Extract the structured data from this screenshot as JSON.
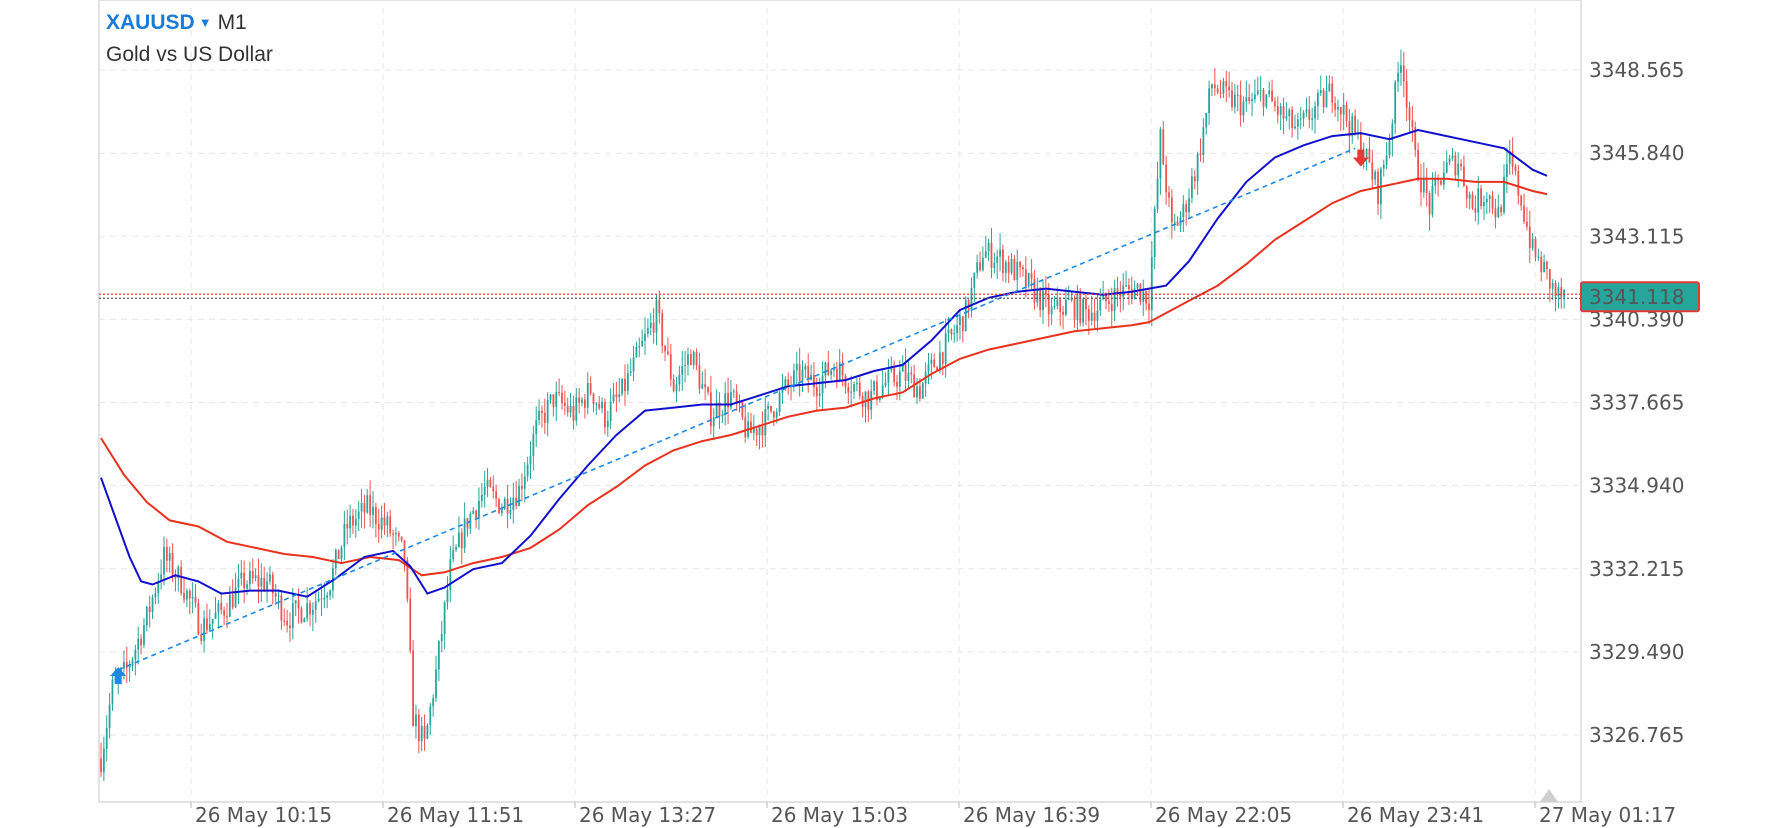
{
  "header": {
    "symbol": "XAUUSD",
    "timeframe": "M1",
    "description": "Gold vs US Dollar"
  },
  "colors": {
    "bull": "#26a69a",
    "bear": "#ef5350",
    "ma_fast": "#1010cc",
    "ma_slow": "#e8321e",
    "trend": "#1e88e5",
    "price_tag_bg": "#26a69a",
    "price_tag_border": "#e53935",
    "grid": "#e6e6e6"
  },
  "price_tag": "3341.118",
  "chart_data": {
    "type": "candlestick",
    "ylim": [
      3324.7,
      3350.6
    ],
    "y_ticks": [
      "3348.565",
      "3345.840",
      "3343.115",
      "3340.390",
      "3337.665",
      "3334.940",
      "3332.215",
      "3329.490",
      "3326.765"
    ],
    "x_ticks": [
      "26 May 10:15",
      "26 May 11:51",
      "26 May 13:27",
      "26 May 15:03",
      "26 May 16:39",
      "26 May 22:05",
      "26 May 23:41",
      "27 May 01:17"
    ],
    "current_price": 3341.118,
    "trend_line": {
      "start": 3328.9,
      "end": 3346.0
    },
    "markers": [
      {
        "type": "buy-arrow",
        "at": "start",
        "price": 3328.7
      },
      {
        "type": "sell-arrow",
        "at": "near-end",
        "price": 3345.7
      }
    ],
    "price_path": [
      [
        0,
        3326.0
      ],
      [
        4,
        3328.3
      ],
      [
        9,
        3328.9
      ],
      [
        16,
        3330.6
      ],
      [
        22,
        3332.6
      ],
      [
        28,
        3331.8
      ],
      [
        35,
        3330.3
      ],
      [
        42,
        3330.8
      ],
      [
        50,
        3331.8
      ],
      [
        58,
        3331.8
      ],
      [
        65,
        3330.6
      ],
      [
        74,
        3331.1
      ],
      [
        80,
        3331.8
      ],
      [
        86,
        3333.6
      ],
      [
        93,
        3334.2
      ],
      [
        100,
        3333.6
      ],
      [
        106,
        3332.6
      ],
      [
        109,
        3327.4
      ],
      [
        113,
        3326.4
      ],
      [
        117,
        3328.8
      ],
      [
        122,
        3332.2
      ],
      [
        128,
        3333.8
      ],
      [
        134,
        3334.8
      ],
      [
        140,
        3334.3
      ],
      [
        146,
        3334.8
      ],
      [
        152,
        3336.8
      ],
      [
        158,
        3337.8
      ],
      [
        165,
        3337.3
      ],
      [
        171,
        3338.1
      ],
      [
        176,
        3337.2
      ],
      [
        182,
        3338.0
      ],
      [
        188,
        3339.3
      ],
      [
        194,
        3340.6
      ],
      [
        200,
        3338.2
      ],
      [
        206,
        3339.3
      ],
      [
        213,
        3337.3
      ],
      [
        220,
        3337.9
      ],
      [
        226,
        3336.6
      ],
      [
        232,
        3337.1
      ],
      [
        238,
        3338.0
      ],
      [
        244,
        3338.6
      ],
      [
        250,
        3338.3
      ],
      [
        256,
        3338.9
      ],
      [
        262,
        3338.3
      ],
      [
        268,
        3337.8
      ],
      [
        274,
        3338.3
      ],
      [
        280,
        3338.6
      ],
      [
        286,
        3338.1
      ],
      [
        292,
        3339.1
      ],
      [
        297,
        3339.8
      ],
      [
        302,
        3340.6
      ],
      [
        308,
        3342.6
      ],
      [
        314,
        3342.4
      ],
      [
        320,
        3341.9
      ],
      [
        326,
        3341.3
      ],
      [
        332,
        3340.6
      ],
      [
        338,
        3340.9
      ],
      [
        344,
        3340.6
      ],
      [
        350,
        3340.9
      ],
      [
        356,
        3341.3
      ],
      [
        362,
        3341.4
      ],
      [
        366,
        3341.1
      ],
      [
        370,
        3346.3
      ],
      [
        374,
        3343.3
      ],
      [
        378,
        3343.9
      ],
      [
        383,
        3345.6
      ],
      [
        388,
        3348.1
      ],
      [
        394,
        3347.6
      ],
      [
        400,
        3347.4
      ],
      [
        406,
        3347.8
      ],
      [
        412,
        3347.1
      ],
      [
        418,
        3346.6
      ],
      [
        424,
        3347.3
      ],
      [
        430,
        3347.9
      ],
      [
        436,
        3346.8
      ],
      [
        441,
        3345.9
      ],
      [
        446,
        3344.6
      ],
      [
        450,
        3346.4
      ],
      [
        454,
        3349.1
      ],
      [
        459,
        3345.6
      ],
      [
        464,
        3344.1
      ],
      [
        469,
        3345.3
      ],
      [
        474,
        3345.6
      ],
      [
        479,
        3344.1
      ],
      [
        484,
        3344.6
      ],
      [
        488,
        3343.8
      ],
      [
        492,
        3345.6
      ],
      [
        496,
        3344.3
      ],
      [
        500,
        3342.6
      ],
      [
        504,
        3342.0
      ],
      [
        508,
        3341.2
      ],
      [
        511,
        3341.1
      ]
    ],
    "ma_fast": [
      [
        0,
        3335.2
      ],
      [
        5,
        3333.9
      ],
      [
        10,
        3332.6
      ],
      [
        14,
        3331.8
      ],
      [
        18,
        3331.7
      ],
      [
        26,
        3332.0
      ],
      [
        34,
        3331.8
      ],
      [
        42,
        3331.4
      ],
      [
        52,
        3331.5
      ],
      [
        62,
        3331.5
      ],
      [
        72,
        3331.3
      ],
      [
        82,
        3331.9
      ],
      [
        92,
        3332.6
      ],
      [
        102,
        3332.8
      ],
      [
        108,
        3332.3
      ],
      [
        114,
        3331.4
      ],
      [
        120,
        3331.6
      ],
      [
        130,
        3332.2
      ],
      [
        140,
        3332.4
      ],
      [
        150,
        3333.3
      ],
      [
        160,
        3334.5
      ],
      [
        170,
        3335.6
      ],
      [
        180,
        3336.6
      ],
      [
        190,
        3337.4
      ],
      [
        200,
        3337.5
      ],
      [
        210,
        3337.6
      ],
      [
        220,
        3337.6
      ],
      [
        230,
        3337.9
      ],
      [
        240,
        3338.2
      ],
      [
        250,
        3338.3
      ],
      [
        260,
        3338.4
      ],
      [
        270,
        3338.7
      ],
      [
        280,
        3338.9
      ],
      [
        290,
        3339.7
      ],
      [
        300,
        3340.7
      ],
      [
        310,
        3341.1
      ],
      [
        320,
        3341.3
      ],
      [
        330,
        3341.4
      ],
      [
        340,
        3341.3
      ],
      [
        350,
        3341.2
      ],
      [
        360,
        3341.3
      ],
      [
        366,
        3341.4
      ],
      [
        372,
        3341.5
      ],
      [
        380,
        3342.3
      ],
      [
        390,
        3343.7
      ],
      [
        400,
        3344.9
      ],
      [
        410,
        3345.7
      ],
      [
        420,
        3346.1
      ],
      [
        430,
        3346.4
      ],
      [
        440,
        3346.5
      ],
      [
        450,
        3346.3
      ],
      [
        460,
        3346.6
      ],
      [
        470,
        3346.4
      ],
      [
        480,
        3346.2
      ],
      [
        490,
        3346.0
      ],
      [
        500,
        3345.3
      ],
      [
        505,
        3345.1
      ]
    ],
    "ma_slow": [
      [
        0,
        3336.5
      ],
      [
        8,
        3335.3
      ],
      [
        16,
        3334.4
      ],
      [
        24,
        3333.8
      ],
      [
        34,
        3333.6
      ],
      [
        44,
        3333.1
      ],
      [
        54,
        3332.9
      ],
      [
        64,
        3332.7
      ],
      [
        74,
        3332.6
      ],
      [
        84,
        3332.4
      ],
      [
        94,
        3332.6
      ],
      [
        104,
        3332.5
      ],
      [
        112,
        3332.0
      ],
      [
        120,
        3332.1
      ],
      [
        130,
        3332.4
      ],
      [
        140,
        3332.6
      ],
      [
        150,
        3332.9
      ],
      [
        160,
        3333.5
      ],
      [
        170,
        3334.3
      ],
      [
        180,
        3334.9
      ],
      [
        190,
        3335.6
      ],
      [
        200,
        3336.1
      ],
      [
        210,
        3336.4
      ],
      [
        220,
        3336.6
      ],
      [
        230,
        3336.9
      ],
      [
        240,
        3337.2
      ],
      [
        250,
        3337.4
      ],
      [
        260,
        3337.5
      ],
      [
        270,
        3337.8
      ],
      [
        280,
        3338.0
      ],
      [
        290,
        3338.6
      ],
      [
        300,
        3339.1
      ],
      [
        310,
        3339.4
      ],
      [
        320,
        3339.6
      ],
      [
        330,
        3339.8
      ],
      [
        340,
        3340.0
      ],
      [
        350,
        3340.1
      ],
      [
        360,
        3340.2
      ],
      [
        366,
        3340.3
      ],
      [
        372,
        3340.6
      ],
      [
        380,
        3341.0
      ],
      [
        390,
        3341.5
      ],
      [
        400,
        3342.2
      ],
      [
        410,
        3343.0
      ],
      [
        420,
        3343.6
      ],
      [
        430,
        3344.2
      ],
      [
        440,
        3344.6
      ],
      [
        450,
        3344.8
      ],
      [
        460,
        3345.0
      ],
      [
        470,
        3345.0
      ],
      [
        480,
        3344.9
      ],
      [
        490,
        3344.9
      ],
      [
        500,
        3344.6
      ],
      [
        505,
        3344.5
      ]
    ]
  }
}
